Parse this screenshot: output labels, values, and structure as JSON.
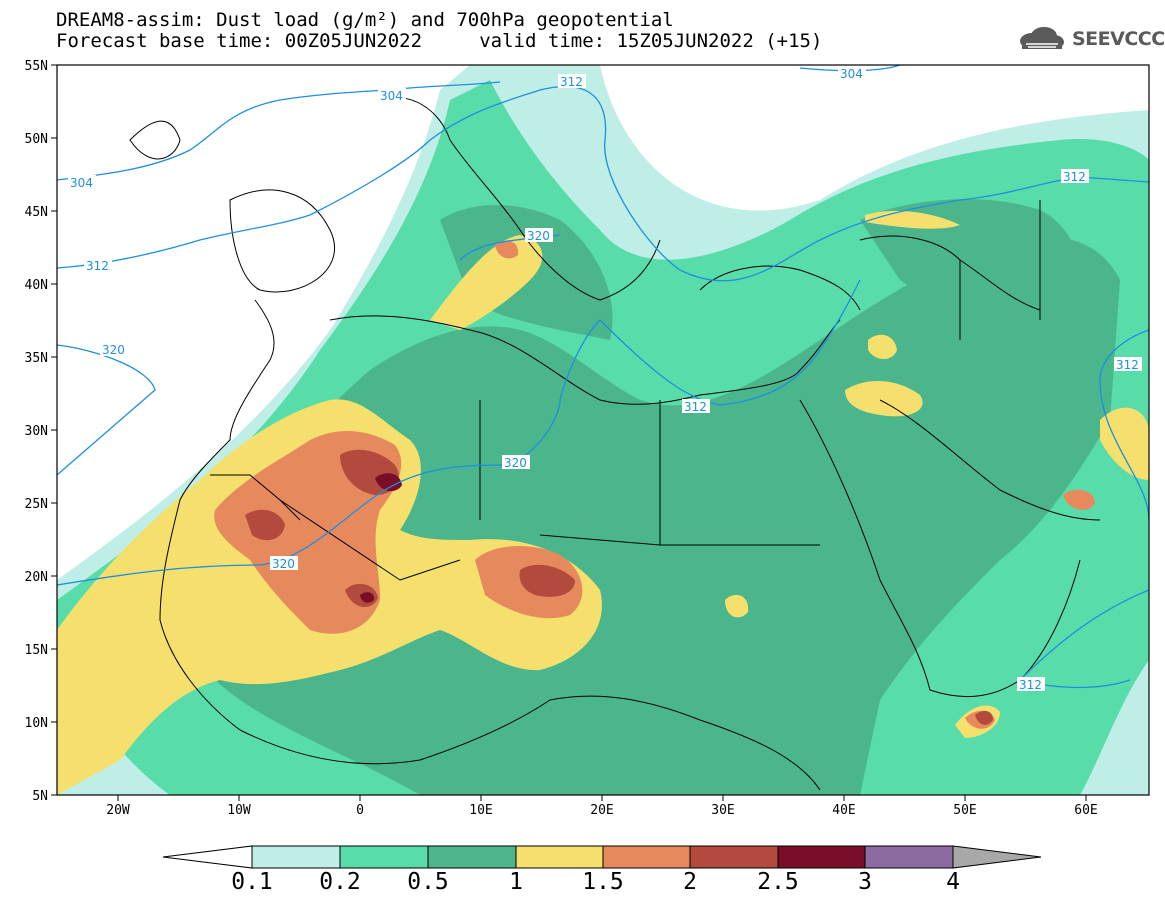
{
  "header": {
    "title_line1": "DREAM8-assim: Dust load (g/m²) and 700hPa geopotential",
    "title_line2": "Forecast base time: 00Z05JUN2022     valid time: 15Z05JUN2022 (+15)"
  },
  "logo": {
    "text": "SEEVCCC",
    "icon": "cloud-logo-icon"
  },
  "axes": {
    "lat_labels": [
      "55N",
      "50N",
      "45N",
      "40N",
      "35N",
      "30N",
      "25N",
      "20N",
      "15N",
      "10N",
      "5N"
    ],
    "lon_labels": [
      "20W",
      "10W",
      "0",
      "10E",
      "20E",
      "30E",
      "40E",
      "50E",
      "60E"
    ]
  },
  "contours": {
    "labels": [
      "304",
      "304",
      "304",
      "312",
      "312",
      "312",
      "312",
      "312",
      "312",
      "320",
      "320",
      "320",
      "320"
    ]
  },
  "colorbar": {
    "labels": [
      "0.1",
      "0.2",
      "0.5",
      "1",
      "1.5",
      "2",
      "2.5",
      "3",
      "4"
    ],
    "colors": [
      "#ffffff",
      "#bfeee6",
      "#58dcaa",
      "#4bb58c",
      "#f5e06e",
      "#e68a5e",
      "#b24a3e",
      "#7a0d28",
      "#8c6aa2",
      "#a8a8a8"
    ]
  },
  "colors": {
    "very_light": "#bfeee6",
    "light": "#58dcaa",
    "medium": "#4bb58c",
    "yellow": "#f5e06e",
    "orange": "#e68a5e",
    "red": "#b24a3e",
    "dark_red": "#7a0d28",
    "contour": "#1e8fe0"
  }
}
